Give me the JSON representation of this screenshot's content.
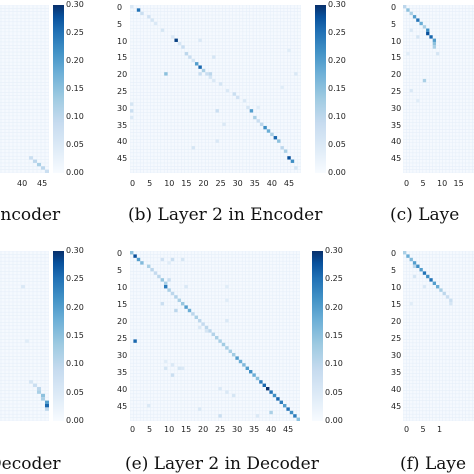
{
  "colorbar": {
    "ticks": [
      "0.30",
      "0.25",
      "0.20",
      "0.15",
      "0.10",
      "0.05",
      "0.00"
    ],
    "range": [
      0.0,
      0.3
    ]
  },
  "captions": {
    "a": "Encoder",
    "b": "(b) Layer 2 in Encoder",
    "c": "(c) Laye",
    "d": "Decoder",
    "e": "(e) Layer 2 in Decoder",
    "f": "(f) Laye"
  },
  "x_ticks_full": [
    "0",
    "5",
    "10",
    "15",
    "20",
    "25",
    "30",
    "35",
    "40",
    "45"
  ],
  "x_ticks_a": [
    "40",
    "45"
  ],
  "x_ticks_c": [
    "0",
    "5",
    "10",
    "15"
  ],
  "x_ticks_f": [
    "0",
    "5",
    "1"
  ],
  "y_ticks_b": [
    "0",
    "5",
    "10",
    "15",
    "20",
    "25",
    "30",
    "35",
    "40",
    "45"
  ],
  "y_ticks_c": [
    "0",
    "5",
    "10",
    "15",
    "20",
    "25",
    "30",
    "35",
    "40",
    "45"
  ],
  "y_ticks_e": [
    "0",
    "5",
    "10",
    "15",
    "20",
    "25",
    "30",
    "35",
    "40",
    "45"
  ],
  "y_ticks_f": [
    "0",
    "5",
    "10",
    "15",
    "20",
    "25",
    "30",
    "35",
    "40",
    "45"
  ],
  "chart_data": [
    {
      "type": "heatmap",
      "title": "Encoder",
      "size": [
        50,
        50
      ],
      "vmin": 0,
      "vmax": 0.3,
      "cells": [
        [
          45,
          45,
          0.08
        ],
        [
          46,
          46,
          0.1
        ],
        [
          47,
          47,
          0.12
        ],
        [
          48,
          48,
          0.1
        ],
        [
          49,
          49,
          0.08
        ],
        [
          6,
          0,
          0.1
        ],
        [
          33,
          1,
          0.28
        ],
        [
          32,
          0,
          0.05
        ],
        [
          20,
          2,
          0.04
        ]
      ]
    },
    {
      "type": "heatmap",
      "title": "(b) Layer 2 in Encoder",
      "size": [
        50,
        50
      ],
      "vmin": 0,
      "vmax": 0.3,
      "cells": [
        [
          0,
          0,
          0.05
        ],
        [
          1,
          2,
          0.25
        ],
        [
          2,
          3,
          0.08
        ],
        [
          3,
          5,
          0.07
        ],
        [
          4,
          6,
          0.06
        ],
        [
          5,
          7,
          0.05
        ],
        [
          7,
          9,
          0.06
        ],
        [
          9,
          12,
          0.05
        ],
        [
          10,
          13,
          0.29
        ],
        [
          11,
          14,
          0.06
        ],
        [
          12,
          15,
          0.08
        ],
        [
          14,
          16,
          0.1
        ],
        [
          15,
          17,
          0.08
        ],
        [
          16,
          18,
          0.06
        ],
        [
          17,
          19,
          0.2
        ],
        [
          18,
          20,
          0.26
        ],
        [
          19,
          21,
          0.12
        ],
        [
          20,
          22,
          0.08
        ],
        [
          21,
          23,
          0.06
        ],
        [
          22,
          24,
          0.05
        ],
        [
          23,
          26,
          0.06
        ],
        [
          25,
          28,
          0.05
        ],
        [
          26,
          30,
          0.08
        ],
        [
          27,
          31,
          0.07
        ],
        [
          28,
          33,
          0.05
        ],
        [
          30,
          34,
          0.06
        ],
        [
          31,
          35,
          0.2
        ],
        [
          33,
          36,
          0.12
        ],
        [
          34,
          37,
          0.08
        ],
        [
          35,
          38,
          0.1
        ],
        [
          36,
          39,
          0.22
        ],
        [
          37,
          40,
          0.18
        ],
        [
          38,
          41,
          0.12
        ],
        [
          39,
          42,
          0.26
        ],
        [
          40,
          43,
          0.15
        ],
        [
          42,
          44,
          0.1
        ],
        [
          43,
          45,
          0.12
        ],
        [
          45,
          46,
          0.28
        ],
        [
          46,
          47,
          0.22
        ],
        [
          48,
          48,
          0.06
        ],
        [
          20,
          10,
          0.15
        ],
        [
          20,
          20,
          0.08
        ],
        [
          20,
          23,
          0.1
        ],
        [
          29,
          0,
          0.06
        ],
        [
          31,
          0,
          0.08
        ],
        [
          33,
          0,
          0.05
        ],
        [
          10,
          20,
          0.05
        ],
        [
          15,
          24,
          0.06
        ],
        [
          30,
          37,
          0.04
        ],
        [
          42,
          18,
          0.06
        ],
        [
          35,
          27,
          0.05
        ],
        [
          31,
          25,
          0.08
        ],
        [
          40,
          25,
          0.05
        ],
        [
          13,
          46,
          0.04
        ],
        [
          20,
          48,
          0.05
        ],
        [
          24,
          44,
          0.04
        ]
      ]
    },
    {
      "type": "heatmap",
      "title": "(c) Laye",
      "size": [
        50,
        50
      ],
      "vmin": 0,
      "vmax": 0.3,
      "cells": [
        [
          0,
          0,
          0.1
        ],
        [
          1,
          1,
          0.15
        ],
        [
          2,
          2,
          0.12
        ],
        [
          3,
          3,
          0.2
        ],
        [
          4,
          4,
          0.25
        ],
        [
          5,
          5,
          0.18
        ],
        [
          6,
          6,
          0.12
        ],
        [
          7,
          7,
          0.22
        ],
        [
          8,
          7,
          0.28
        ],
        [
          9,
          8,
          0.26
        ],
        [
          10,
          9,
          0.2
        ],
        [
          11,
          9,
          0.15
        ],
        [
          12,
          9,
          0.12
        ],
        [
          7,
          2,
          0.05
        ],
        [
          9,
          4,
          0.06
        ],
        [
          14,
          1,
          0.04
        ],
        [
          22,
          6,
          0.12
        ],
        [
          25,
          2,
          0.05
        ],
        [
          28,
          4,
          0.04
        ],
        [
          14,
          10,
          0.06
        ]
      ]
    },
    {
      "type": "heatmap",
      "title": "Decoder",
      "size": [
        50,
        50
      ],
      "vmin": 0,
      "vmax": 0.3,
      "cells": [
        [
          38,
          45,
          0.06
        ],
        [
          39,
          46,
          0.08
        ],
        [
          40,
          47,
          0.1
        ],
        [
          41,
          47,
          0.12
        ],
        [
          42,
          48,
          0.15
        ],
        [
          43,
          48,
          0.12
        ],
        [
          44,
          49,
          0.2
        ],
        [
          45,
          49,
          0.26
        ],
        [
          46,
          49,
          0.1
        ],
        [
          10,
          43,
          0.05
        ],
        [
          26,
          44,
          0.04
        ]
      ]
    },
    {
      "type": "heatmap",
      "title": "(e) Layer 2 in Decoder",
      "size": [
        50,
        50
      ],
      "vmin": 0,
      "vmax": 0.3,
      "cells": [
        [
          0,
          0,
          0.15
        ],
        [
          1,
          1,
          0.28
        ],
        [
          2,
          2,
          0.2
        ],
        [
          3,
          3,
          0.16
        ],
        [
          4,
          5,
          0.12
        ],
        [
          5,
          6,
          0.1
        ],
        [
          6,
          7,
          0.09
        ],
        [
          7,
          8,
          0.1
        ],
        [
          8,
          9,
          0.14
        ],
        [
          9,
          10,
          0.12
        ],
        [
          10,
          10,
          0.24
        ],
        [
          11,
          11,
          0.12
        ],
        [
          12,
          12,
          0.1
        ],
        [
          13,
          13,
          0.11
        ],
        [
          14,
          14,
          0.12
        ],
        [
          15,
          15,
          0.14
        ],
        [
          16,
          16,
          0.2
        ],
        [
          17,
          17,
          0.18
        ],
        [
          18,
          18,
          0.1
        ],
        [
          19,
          19,
          0.12
        ],
        [
          20,
          20,
          0.1
        ],
        [
          21,
          21,
          0.09
        ],
        [
          22,
          22,
          0.1
        ],
        [
          23,
          23,
          0.1
        ],
        [
          24,
          24,
          0.11
        ],
        [
          25,
          25,
          0.12
        ],
        [
          26,
          26,
          0.12
        ],
        [
          27,
          27,
          0.13
        ],
        [
          28,
          28,
          0.12
        ],
        [
          29,
          29,
          0.12
        ],
        [
          30,
          30,
          0.13
        ],
        [
          31,
          31,
          0.2
        ],
        [
          32,
          32,
          0.18
        ],
        [
          33,
          33,
          0.16
        ],
        [
          34,
          34,
          0.2
        ],
        [
          35,
          35,
          0.22
        ],
        [
          36,
          36,
          0.18
        ],
        [
          37,
          37,
          0.15
        ],
        [
          38,
          38,
          0.24
        ],
        [
          39,
          39,
          0.26
        ],
        [
          40,
          40,
          0.3
        ],
        [
          41,
          41,
          0.25
        ],
        [
          42,
          42,
          0.22
        ],
        [
          43,
          43,
          0.26
        ],
        [
          44,
          44,
          0.24
        ],
        [
          45,
          45,
          0.2
        ],
        [
          46,
          46,
          0.25
        ],
        [
          47,
          47,
          0.22
        ],
        [
          48,
          48,
          0.24
        ],
        [
          49,
          49,
          0.15
        ],
        [
          2,
          9,
          0.07
        ],
        [
          2,
          12,
          0.08
        ],
        [
          2,
          15,
          0.06
        ],
        [
          3,
          11,
          0.04
        ],
        [
          8,
          11,
          0.08
        ],
        [
          10,
          16,
          0.05
        ],
        [
          15,
          9,
          0.08
        ],
        [
          17,
          13,
          0.1
        ],
        [
          20,
          28,
          0.05
        ],
        [
          22,
          20,
          0.05
        ],
        [
          23,
          22,
          0.06
        ],
        [
          26,
          1,
          0.26
        ],
        [
          32,
          10,
          0.04
        ],
        [
          33,
          12,
          0.05
        ],
        [
          34,
          14,
          0.06
        ],
        [
          34,
          10,
          0.06
        ],
        [
          34,
          15,
          0.05
        ],
        [
          36,
          12,
          0.08
        ],
        [
          40,
          26,
          0.05
        ],
        [
          41,
          28,
          0.05
        ],
        [
          42,
          30,
          0.06
        ],
        [
          45,
          5,
          0.05
        ],
        [
          46,
          20,
          0.05
        ],
        [
          47,
          41,
          0.12
        ],
        [
          48,
          26,
          0.08
        ],
        [
          48,
          37,
          0.05
        ],
        [
          10,
          28,
          0.04
        ],
        [
          14,
          28,
          0.04
        ]
      ]
    },
    {
      "type": "heatmap",
      "title": "(f) Laye",
      "size": [
        50,
        50
      ],
      "vmin": 0,
      "vmax": 0.3,
      "cells": [
        [
          0,
          0,
          0.12
        ],
        [
          1,
          1,
          0.18
        ],
        [
          2,
          2,
          0.16
        ],
        [
          3,
          3,
          0.2
        ],
        [
          4,
          3,
          0.1
        ],
        [
          4,
          4,
          0.22
        ],
        [
          5,
          5,
          0.2
        ],
        [
          6,
          6,
          0.25
        ],
        [
          7,
          7,
          0.22
        ],
        [
          8,
          8,
          0.25
        ],
        [
          9,
          9,
          0.2
        ],
        [
          10,
          10,
          0.18
        ],
        [
          11,
          11,
          0.12
        ],
        [
          12,
          12,
          0.1
        ],
        [
          13,
          13,
          0.08
        ],
        [
          14,
          14,
          0.08
        ],
        [
          15,
          14,
          0.06
        ],
        [
          7,
          3,
          0.06
        ],
        [
          10,
          6,
          0.05
        ],
        [
          15,
          2,
          0.04
        ]
      ]
    }
  ]
}
